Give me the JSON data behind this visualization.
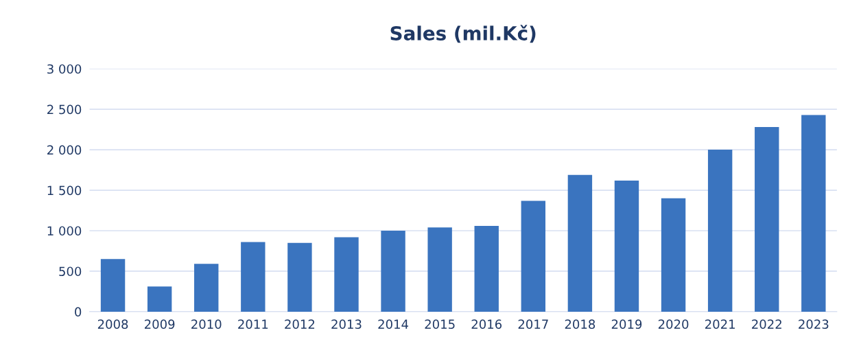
{
  "chart_data": {
    "type": "bar",
    "title": "Sales (mil.Kč)",
    "categories": [
      "2008",
      "2009",
      "2010",
      "2011",
      "2012",
      "2013",
      "2014",
      "2015",
      "2016",
      "2017",
      "2018",
      "2019",
      "2020",
      "2021",
      "2022",
      "2023"
    ],
    "values": [
      650,
      310,
      590,
      860,
      850,
      920,
      1000,
      1040,
      1060,
      1370,
      1690,
      1620,
      1400,
      2000,
      2280,
      2430
    ],
    "color": "#3a74bf",
    "ylim": [
      0,
      3000
    ],
    "yticks": [
      0,
      500,
      {
        "value": 1000,
        "label": "1 000"
      },
      {
        "value": 1500,
        "label": "1 500"
      },
      {
        "value": 2000,
        "label": "2 000"
      },
      {
        "value": 2500,
        "label": "2 500"
      },
      {
        "value": 3000,
        "label": "3 000"
      }
    ],
    "grid": "y"
  }
}
